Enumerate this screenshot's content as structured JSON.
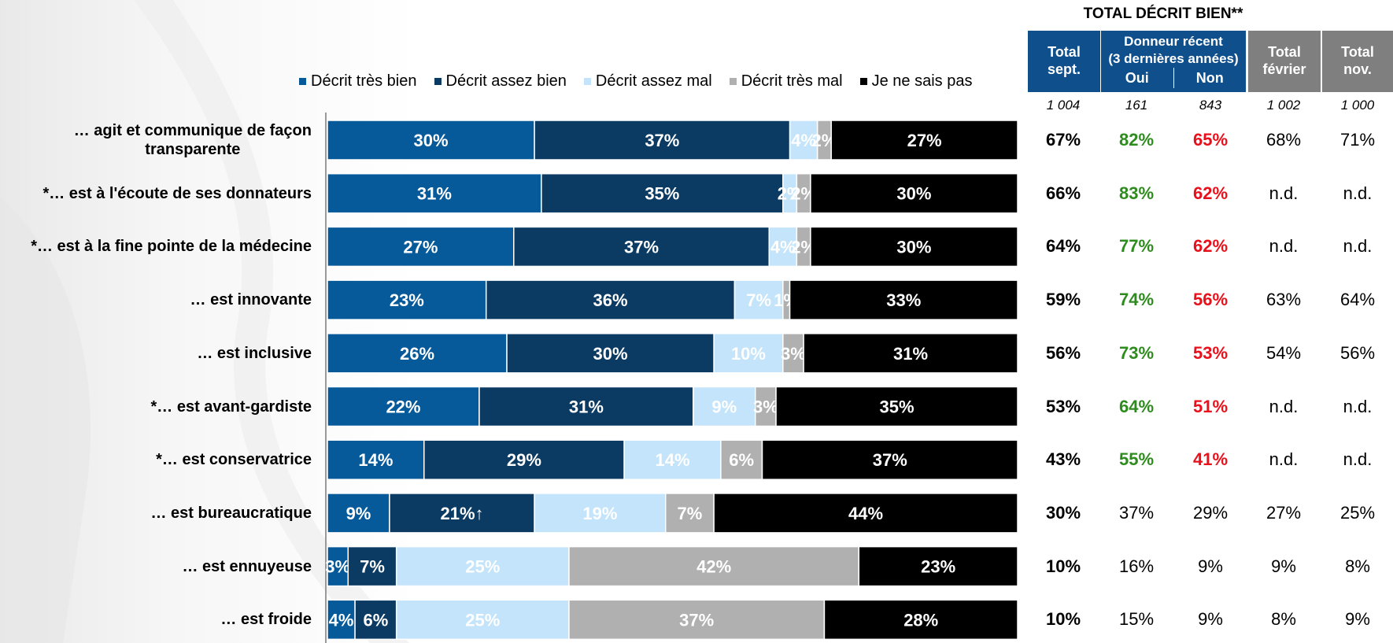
{
  "chart_data": {
    "type": "bar",
    "orientation": "horizontal",
    "stacked": true,
    "percent_suffix": "%",
    "categories": [
      "… agit et communique de façon\ntransparente",
      "*… est à l'écoute de ses donnateurs",
      "*… est à la fine pointe de la médecine",
      "… est innovante",
      "… est inclusive",
      "*… est avant-gardiste",
      "*… est conservatrice",
      "… est bureaucratique",
      "… est ennuyeuse",
      "… est froide"
    ],
    "series": [
      {
        "name": "Décrit très bien",
        "color": "#075a9a",
        "label_color": "#ffffff",
        "values": [
          30,
          31,
          27,
          23,
          26,
          22,
          14,
          9,
          3,
          4
        ]
      },
      {
        "name": "Décrit assez bien",
        "color": "#0b3a63",
        "label_color": "#ffffff",
        "values": [
          37,
          35,
          37,
          36,
          30,
          31,
          29,
          21,
          7,
          6
        ]
      },
      {
        "name": "Décrit assez mal",
        "color": "#c3e4fa",
        "label_color": "#ffffff",
        "values": [
          4,
          2,
          4,
          7,
          10,
          9,
          14,
          19,
          25,
          25
        ]
      },
      {
        "name": "Décrit très mal",
        "color": "#b0b0b0",
        "label_color": "#ffffff",
        "values": [
          2,
          2,
          2,
          1,
          3,
          3,
          6,
          7,
          42,
          37
        ]
      },
      {
        "name": "Je ne sais pas",
        "color": "#000000",
        "label_color": "#ffffff",
        "values": [
          27,
          30,
          30,
          33,
          31,
          35,
          37,
          44,
          23,
          28
        ]
      }
    ],
    "annotations": [
      {
        "row": 7,
        "series": 1,
        "arrow": "up",
        "symbol": "↑"
      }
    ],
    "legend_position": "top",
    "grid": false
  },
  "table": {
    "title": "TOTAL DÉCRIT BIEN**",
    "headers": {
      "total_sept": "Total\nsept.",
      "donneur": "Donneur récent\n(3 dernières années)",
      "oui": "Oui",
      "non": "Non",
      "total_fevrier": "Total\nfévrier",
      "total_nov": "Total\nnov."
    },
    "bases": [
      "1 004",
      "161",
      "843",
      "1 002",
      "1 000"
    ],
    "rows": [
      [
        "67%",
        "82%",
        "65%",
        "68%",
        "71%"
      ],
      [
        "66%",
        "83%",
        "62%",
        "n.d.",
        "n.d."
      ],
      [
        "64%",
        "77%",
        "62%",
        "n.d.",
        "n.d."
      ],
      [
        "59%",
        "74%",
        "56%",
        "63%",
        "64%"
      ],
      [
        "56%",
        "73%",
        "53%",
        "54%",
        "56%"
      ],
      [
        "53%",
        "64%",
        "51%",
        "n.d.",
        "n.d."
      ],
      [
        "43%",
        "55%",
        "41%",
        "n.d.",
        "n.d."
      ],
      [
        "30%",
        "37%",
        "29%",
        "27%",
        "25%"
      ],
      [
        "10%",
        "16%",
        "9%",
        "9%",
        "8%"
      ],
      [
        "10%",
        "15%",
        "9%",
        "8%",
        "9%"
      ]
    ],
    "highlight_rows": 7,
    "colors": {
      "header_blue": "#0e4f8c",
      "header_gray": "#7f7f7f",
      "positive": "#2e8b1e",
      "negative": "#e8101a"
    }
  }
}
